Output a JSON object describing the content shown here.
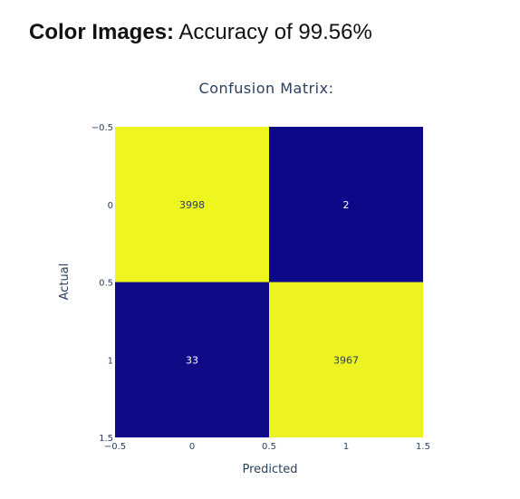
{
  "headline": {
    "bold": "Color Images:",
    "rest": " Accuracy of 99.56%"
  },
  "colors": {
    "high": "#eff51f",
    "low": "#0d0887",
    "text_on_high": "#2a3f5f",
    "text_on_low": "#ffffff",
    "axis_text": "#2a3f5f"
  },
  "chart_data": {
    "type": "heatmap",
    "title": "Confusion Matrix:",
    "xlabel": "Predicted",
    "ylabel": "Actual",
    "x_categories": [
      0,
      1
    ],
    "y_categories": [
      0,
      1
    ],
    "xlim": [
      -0.5,
      1.5
    ],
    "ylim": [
      -0.5,
      1.5
    ],
    "y_reversed": true,
    "x_ticks": [
      "−0.5",
      "0",
      "0.5",
      "1",
      "1.5"
    ],
    "y_ticks": [
      "−0.5",
      "0",
      "0.5",
      "1",
      "1.5"
    ],
    "tick_values": [
      -0.5,
      0,
      0.5,
      1,
      1.5
    ],
    "z": [
      [
        3998,
        2
      ],
      [
        33,
        3967
      ]
    ],
    "labels": [
      [
        "3998",
        "2"
      ],
      [
        "33",
        "3967"
      ]
    ],
    "grid": false,
    "legend": "none"
  }
}
